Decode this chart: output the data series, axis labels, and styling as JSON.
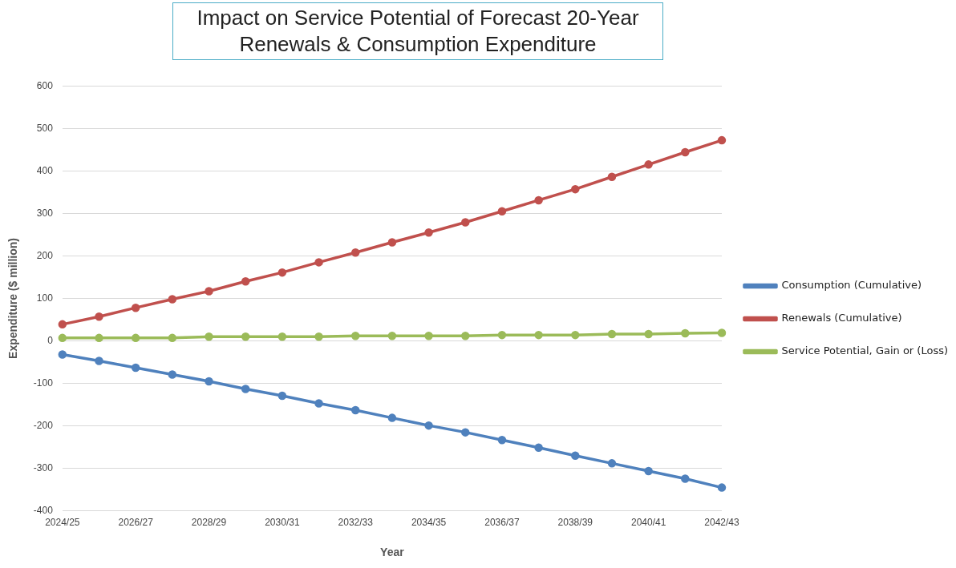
{
  "chart_data": {
    "type": "line",
    "title": "Impact on Service Potential of Forecast 20-Year Renewals & Consumption Expenditure",
    "xlabel": "Year",
    "ylabel": "Expenditure ($ million)",
    "categories": [
      "2024/25",
      null,
      "2026/27",
      null,
      "2028/29",
      null,
      "2030/31",
      null,
      "2032/33",
      null,
      "2034/35",
      null,
      "2036/37",
      null,
      "2038/39",
      null,
      "2040/41",
      null,
      "2042/43"
    ],
    "series": [
      {
        "name": "Consumption (Cumulative)",
        "color": "#4f81bd",
        "values": [
          -32,
          -47,
          -63,
          -79,
          -95,
          -113,
          -129,
          -147,
          -163,
          -181,
          -199,
          -215,
          -233,
          -251,
          -270,
          -288,
          -306,
          -324,
          -345
        ]
      },
      {
        "name": "Renewals (Cumulative)",
        "color": "#c0504d",
        "values": [
          39,
          57,
          78,
          98,
          117,
          140,
          161,
          185,
          208,
          232,
          255,
          279,
          305,
          331,
          357,
          386,
          415,
          444,
          472
        ]
      },
      {
        "name": "Service Potential, Gain or (Loss)",
        "color": "#9bbb59",
        "values": [
          7,
          7,
          7,
          7,
          10,
          10,
          10,
          10,
          12,
          12,
          12,
          12,
          14,
          14,
          14,
          16,
          16,
          18,
          19
        ]
      }
    ],
    "ylim": [
      -400,
      600
    ],
    "yticks": [
      -400,
      -300,
      -200,
      -100,
      0,
      100,
      200,
      300,
      400,
      500,
      600
    ],
    "grid": "y",
    "legend": "right",
    "marker": "circle",
    "line_style": "solid"
  }
}
